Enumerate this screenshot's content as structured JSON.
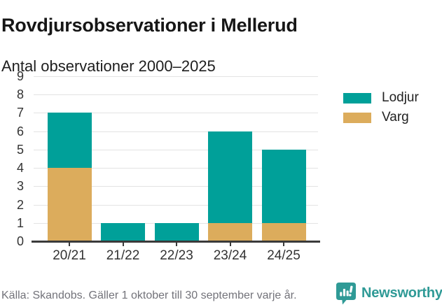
{
  "title": "Rovdjursobservationer i Mellerud",
  "subtitle": "Antal observationer 2000–2025",
  "chart_data": {
    "type": "bar",
    "stacked": true,
    "title": "Rovdjursobservationer i Mellerud",
    "subtitle": "Antal observationer 2000–2025",
    "categories": [
      "20/21",
      "21/22",
      "22/23",
      "23/24",
      "24/25"
    ],
    "series": [
      {
        "name": "Varg",
        "color": "#DCAC5C",
        "values": [
          4,
          0,
          0,
          1,
          1
        ]
      },
      {
        "name": "Lodjur",
        "color": "#00A099",
        "values": [
          3,
          1,
          1,
          5,
          4
        ]
      }
    ],
    "totals": [
      7,
      1,
      1,
      6,
      5
    ],
    "xlabel": "",
    "ylabel": "",
    "ylim": [
      0,
      9
    ],
    "yticks": [
      0,
      1,
      2,
      3,
      4,
      5,
      6,
      7,
      8,
      9
    ],
    "grid": true,
    "legend_position": "top-right",
    "legend_order": [
      "Lodjur",
      "Varg"
    ]
  },
  "legend": {
    "items": [
      {
        "label": "Lodjur",
        "color": "#00A099"
      },
      {
        "label": "Varg",
        "color": "#DCAC5C"
      }
    ]
  },
  "footer": {
    "source": "Källa: Skandobs. Gäller 1 oktober till 30 september varje år.",
    "brand": "Newsworthy",
    "logo_icon": "bar-chart-speech-bubble-icon"
  },
  "colors": {
    "lodjur": "#00A099",
    "varg": "#DCAC5C",
    "grid": "#e3e3e3",
    "axis": "#3a3a3a",
    "tick_label": "#333333",
    "title": "#161616",
    "muted": "#73737a",
    "brand_teal": "#2F9A96"
  }
}
